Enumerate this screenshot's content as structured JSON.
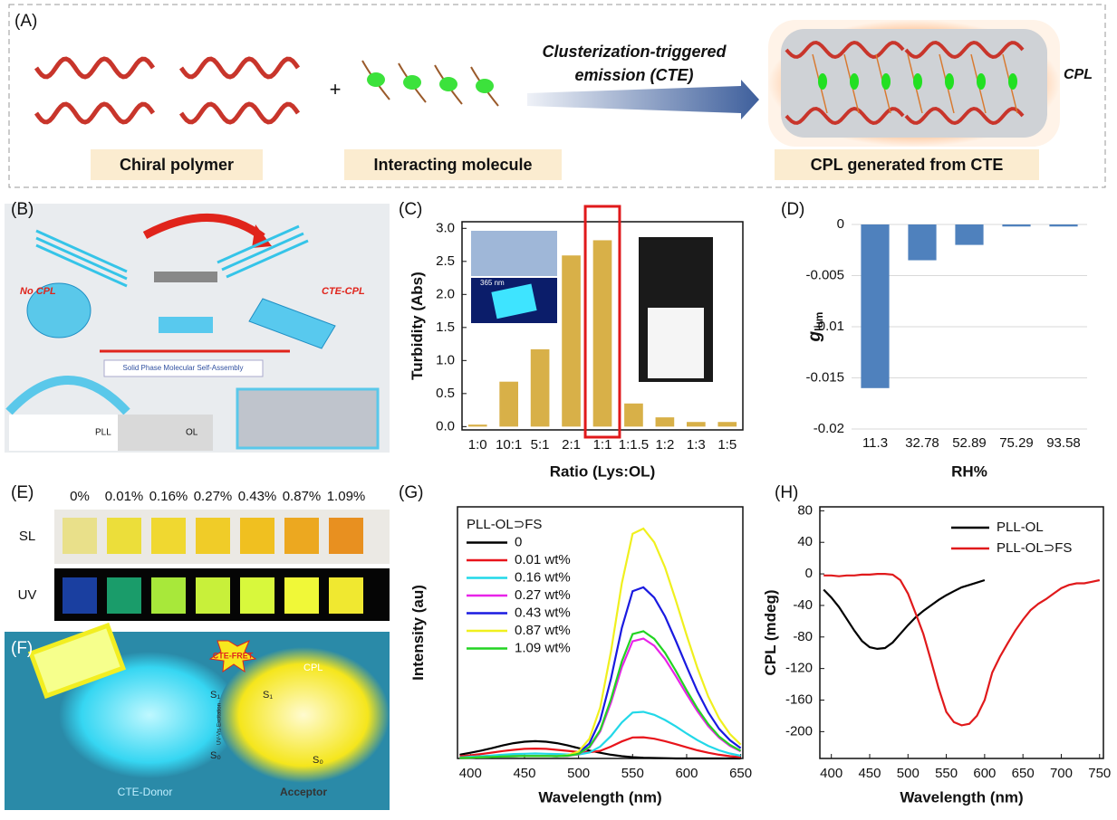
{
  "panel_a": {
    "label": "(A)",
    "arrow_text_1": "Clusterization-triggered",
    "arrow_text_2": "emission (CTE)",
    "plus": "+",
    "cpl": "CPL",
    "box_labels": [
      "Chiral polymer",
      "Interacting molecule",
      "CPL generated from CTE"
    ]
  },
  "panel_b": {
    "label": "(B)",
    "no_cpl": "No CPL",
    "cte_cpl": "CTE-CPL",
    "process": "Solid Phase Molecular Self-Assembly",
    "pll": "PLL",
    "ol": "OL"
  },
  "panel_e": {
    "label": "(E)",
    "concentrations": [
      "0%",
      "0.01%",
      "0.16%",
      "0.27%",
      "0.43%",
      "0.87%",
      "1.09%"
    ],
    "rows": [
      "SL",
      "UV"
    ]
  },
  "panel_f": {
    "label": "(F)",
    "fret": "CTE-FRET",
    "cpl": "CPL",
    "donor": "CTE-Donor",
    "acceptor": "Acceptor",
    "s1": "S₁",
    "s0": "S₀",
    "excitation": "UV-Vis Excitation"
  },
  "chart_data": [
    {
      "type": "bar",
      "label": "(C)",
      "x_label": "Ratio (Lys:OL)",
      "y_label": "Turbidity (Abs)",
      "inset_text": "365 nm",
      "highlight": "1:1",
      "color": "#d8b048",
      "categories": [
        "1:0",
        "10:1",
        "5:1",
        "2:1",
        "1:1",
        "1:1.5",
        "1:2",
        "1:3",
        "1:5"
      ],
      "values": [
        0.03,
        0.68,
        1.17,
        2.59,
        2.82,
        0.35,
        0.14,
        0.07,
        0.07
      ],
      "ylim": [
        -0.05,
        3.1
      ],
      "yticks": [
        {
          "value": 0,
          "label": "0.0"
        },
        0.5,
        {
          "value": 1,
          "label": "1.0"
        },
        1.5,
        {
          "value": 2,
          "label": "2.0"
        },
        2.5,
        {
          "value": 3,
          "label": "3.0"
        }
      ],
      "frame": true
    },
    {
      "type": "bar",
      "label": "(D)",
      "x_label": "RH%",
      "y_label": "g",
      "y_label_subscript": "lum",
      "color": "#4f81bd",
      "grid": true,
      "categories": [
        "11.3",
        "32.78",
        "52.89",
        "75.29",
        "93.58"
      ],
      "values": [
        -0.016,
        -0.0035,
        -0.002,
        -0.0002,
        -0.0002
      ],
      "ylim": [
        -0.02,
        0
      ],
      "yticks": [
        0,
        -0.005,
        -0.01,
        -0.015,
        -0.02
      ]
    },
    {
      "type": "line",
      "label": "(G)",
      "x_label": "Wavelength (nm)",
      "y_label": "Intensity (au)",
      "legend_title": "PLL-OL⊃FS",
      "frame": true,
      "x": [
        390,
        400,
        410,
        420,
        430,
        440,
        450,
        460,
        470,
        480,
        490,
        500,
        510,
        520,
        530,
        540,
        550,
        560,
        570,
        580,
        590,
        600,
        610,
        620,
        630,
        640,
        650
      ],
      "xlim": [
        388,
        652
      ],
      "xticks": [
        400,
        450,
        500,
        550,
        600,
        650
      ],
      "ylim": [
        0,
        1.02
      ],
      "series": [
        {
          "name": "0",
          "color": "#000000",
          "values": [
            0.015,
            0.023,
            0.032,
            0.042,
            0.053,
            0.062,
            0.068,
            0.07,
            0.068,
            0.062,
            0.053,
            0.042,
            0.032,
            0.023,
            0.015,
            0.009,
            0.005,
            0.003,
            0.002,
            0.001,
            0,
            0,
            0,
            0,
            0,
            0,
            0
          ]
        },
        {
          "name": "0.01 wt%",
          "color": "#e8141b",
          "values": [
            0.009,
            0.013,
            0.018,
            0.024,
            0.03,
            0.035,
            0.039,
            0.04,
            0.039,
            0.035,
            0.031,
            0.026,
            0.025,
            0.031,
            0.048,
            0.069,
            0.085,
            0.086,
            0.08,
            0.07,
            0.058,
            0.045,
            0.033,
            0.023,
            0.015,
            0.009,
            0.005
          ]
        },
        {
          "name": "0.16 wt%",
          "color": "#22d8e8",
          "values": [
            0.004,
            0.007,
            0.009,
            0.012,
            0.015,
            0.018,
            0.019,
            0.02,
            0.019,
            0.018,
            0.016,
            0.016,
            0.024,
            0.048,
            0.091,
            0.146,
            0.186,
            0.189,
            0.177,
            0.156,
            0.13,
            0.101,
            0.074,
            0.051,
            0.033,
            0.02,
            0.011
          ]
        },
        {
          "name": "0.27 wt%",
          "color": "#e823e8",
          "values": [
            0.002,
            0.003,
            0.005,
            0.006,
            0.008,
            0.009,
            0.01,
            0.01,
            0.01,
            0.009,
            0.01,
            0.017,
            0.044,
            0.109,
            0.226,
            0.37,
            0.475,
            0.486,
            0.457,
            0.403,
            0.334,
            0.26,
            0.191,
            0.131,
            0.084,
            0.051,
            0.029
          ]
        },
        {
          "name": "0.43 wt%",
          "color": "#1a1ae0",
          "values": [
            0.002,
            0.003,
            0.005,
            0.006,
            0.008,
            0.009,
            0.01,
            0.01,
            0.01,
            0.009,
            0.012,
            0.022,
            0.061,
            0.154,
            0.323,
            0.529,
            0.678,
            0.694,
            0.652,
            0.576,
            0.477,
            0.372,
            0.272,
            0.187,
            0.12,
            0.074,
            0.042
          ]
        },
        {
          "name": "0.87 wt%",
          "color": "#f0f01e",
          "values": [
            0.002,
            0.003,
            0.005,
            0.006,
            0.008,
            0.009,
            0.01,
            0.01,
            0.01,
            0.009,
            0.013,
            0.028,
            0.08,
            0.206,
            0.433,
            0.71,
            0.911,
            0.932,
            0.876,
            0.774,
            0.641,
            0.499,
            0.366,
            0.251,
            0.162,
            0.099,
            0.056
          ]
        },
        {
          "name": "1.09 wt%",
          "color": "#22d422",
          "values": [
            0.002,
            0.003,
            0.005,
            0.006,
            0.008,
            0.009,
            0.01,
            0.01,
            0.01,
            0.009,
            0.011,
            0.018,
            0.047,
            0.115,
            0.24,
            0.393,
            0.504,
            0.516,
            0.485,
            0.428,
            0.355,
            0.276,
            0.202,
            0.139,
            0.089,
            0.055,
            0.031
          ]
        }
      ]
    },
    {
      "type": "line",
      "label": "(H)",
      "x_label": "Wavelength (nm)",
      "y_label": "CPL (mdeg)",
      "frame": true,
      "x": [
        390,
        400,
        410,
        420,
        430,
        440,
        450,
        460,
        470,
        480,
        490,
        500,
        510,
        520,
        530,
        540,
        550,
        560,
        570,
        580,
        590,
        600,
        610,
        620,
        630,
        640,
        650,
        660,
        670,
        680,
        690,
        700,
        710,
        720,
        730,
        740,
        750
      ],
      "xlim": [
        385,
        755
      ],
      "xticks": [
        400,
        450,
        500,
        550,
        600,
        650,
        700,
        750
      ],
      "ylim": [
        -234,
        85
      ],
      "yticks": [
        80,
        40,
        0,
        -40,
        -80,
        -120,
        -160,
        -200
      ],
      "series": [
        {
          "name": "PLL-OL",
          "color": "#000000",
          "values": [
            -20,
            -30,
            -42,
            -57,
            -72,
            -85,
            -93,
            -95,
            -94,
            -87,
            -76,
            -65,
            -55,
            -47,
            -40,
            -33,
            -27,
            -22,
            -17,
            -14,
            -11,
            -8,
            null,
            null,
            null,
            null,
            null,
            null,
            null,
            null,
            null,
            null,
            null,
            null,
            null,
            null,
            null
          ]
        },
        {
          "name": "PLL-OL⊃FS",
          "color": "#e0191b",
          "values": [
            -2,
            -2,
            -3,
            -2,
            -2,
            -1,
            -1,
            0,
            0,
            -1,
            -8,
            -25,
            -50,
            -76,
            -110,
            -145,
            -175,
            -188,
            -192,
            -190,
            -180,
            -160,
            -125,
            -105,
            -88,
            -72,
            -58,
            -46,
            -38,
            -32,
            -25,
            -18,
            -14,
            -12,
            -12,
            -10,
            -8
          ]
        }
      ]
    }
  ]
}
